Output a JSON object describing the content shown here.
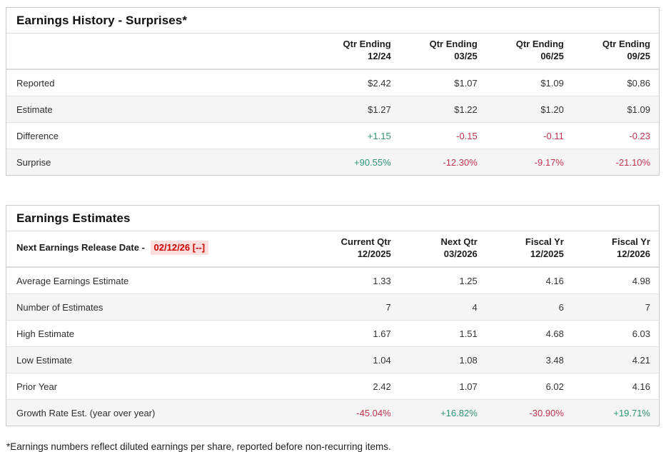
{
  "colors": {
    "positive": "#2c9577",
    "negative": "#c0334d",
    "release_date_text": "#cc0000",
    "release_date_bg": "#fbdfdf"
  },
  "surprises_table": {
    "title": "Earnings History - Surprises*",
    "columns": [
      "Qtr Ending\n12/24",
      "Qtr Ending\n03/25",
      "Qtr Ending\n06/25",
      "Qtr Ending\n09/25"
    ],
    "rows": [
      {
        "label": "Reported",
        "values": [
          "$2.42",
          "$1.07",
          "$1.09",
          "$0.86"
        ],
        "colored": false
      },
      {
        "label": "Estimate",
        "values": [
          "$1.27",
          "$1.22",
          "$1.20",
          "$1.09"
        ],
        "colored": false
      },
      {
        "label": "Difference",
        "values": [
          "+1.15",
          "-0.15",
          "-0.11",
          "-0.23"
        ],
        "colored": true
      },
      {
        "label": "Surprise",
        "values": [
          "+90.55%",
          "-12.30%",
          "-9.17%",
          "-21.10%"
        ],
        "colored": true
      }
    ]
  },
  "estimates_table": {
    "title": "Earnings Estimates",
    "release_date_label": "Next Earnings Release Date -",
    "release_date_value": "02/12/26 [--]",
    "columns": [
      "Current Qtr\n12/2025",
      "Next Qtr\n03/2026",
      "Fiscal Yr\n12/2025",
      "Fiscal Yr\n12/2026"
    ],
    "rows": [
      {
        "label": "Average Earnings Estimate",
        "values": [
          "1.33",
          "1.25",
          "4.16",
          "4.98"
        ],
        "colored": false
      },
      {
        "label": "Number of Estimates",
        "values": [
          "7",
          "4",
          "6",
          "7"
        ],
        "colored": false
      },
      {
        "label": "High Estimate",
        "values": [
          "1.67",
          "1.51",
          "4.68",
          "6.03"
        ],
        "colored": false
      },
      {
        "label": "Low Estimate",
        "values": [
          "1.04",
          "1.08",
          "3.48",
          "4.21"
        ],
        "colored": false
      },
      {
        "label": "Prior Year",
        "values": [
          "2.42",
          "1.07",
          "6.02",
          "4.16"
        ],
        "colored": false
      },
      {
        "label": "Growth Rate Est. (year over year)",
        "values": [
          "-45.04%",
          "+16.82%",
          "-30.90%",
          "+19.71%"
        ],
        "colored": true
      }
    ]
  },
  "footnote": "*Earnings numbers reflect diluted earnings per share, reported before non-recurring items."
}
